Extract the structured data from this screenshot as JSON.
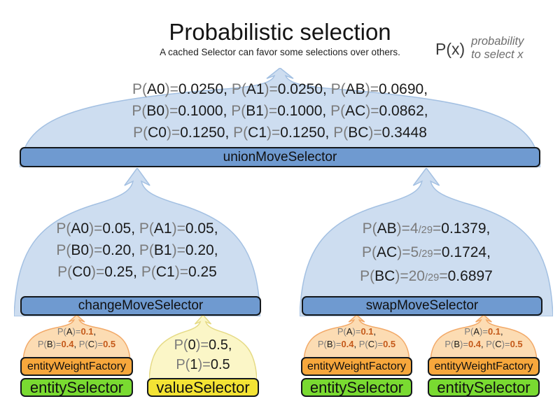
{
  "header": {
    "title": "Probabilistic selection",
    "subtitle": "A cached Selector can favor some selections over others."
  },
  "legend": {
    "symbol": "P(x)",
    "note_lines": [
      "probability",
      "to select x"
    ]
  },
  "union": {
    "prob_lines": [
      "P(A0)=0.0250, P(A1)=0.0250, P(AB)=0.0690,",
      "P(B0)=0.1000, P(B1)=0.1000, P(AC)=0.0862,",
      "P(C0)=0.1250, P(C1)=0.1250, P(BC)=0.3448"
    ],
    "bar_label": "unionMoveSelector"
  },
  "change": {
    "prob_lines": [
      "P(A0)=0.05, P(A1)=0.05,",
      "P(B0)=0.20, P(B1)=0.20,",
      "P(C0)=0.25, P(C1)=0.25"
    ],
    "bar_label": "changeMoveSelector"
  },
  "swap": {
    "prob_lines": [
      "P(AB)=4/29=0.1379,",
      "P(AC)=5/29=0.1724,",
      "P(BC)=20/29=0.6897"
    ],
    "bar_label": "swapMoveSelector"
  },
  "entity_stack": {
    "prob_lines": [
      "P(A)=0.1,",
      "P(B)=0.4, P(C)=0.5"
    ],
    "factory_label": "entityWeightFactory",
    "selector_label": "entitySelector"
  },
  "value_stack": {
    "prob_lines": [
      "P(0)=0.5,",
      "P(1)=0.5"
    ],
    "bar_label": "valueSelector"
  },
  "colors": {
    "blue_bar": "#6f9ad0",
    "blue_dome": "#cdddf0",
    "blue_dome_stroke": "#a3c0e2",
    "orange_bar": "#f7a73c",
    "orange_dome": "#fcdcb3",
    "orange_dome_stroke": "#f2a968",
    "green_bar": "#79da31",
    "yellow_bar": "#f3e334",
    "yellow_dome": "#fbf6c7",
    "yellow_dome_stroke": "#e5da85",
    "gray_text": "#7b7b7b",
    "accent_number": "#c4591a",
    "bar_border": "#14181c"
  }
}
